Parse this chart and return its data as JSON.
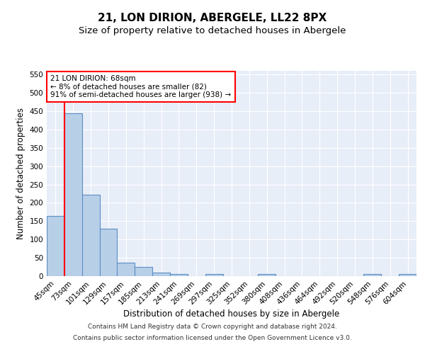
{
  "title": "21, LON DIRION, ABERGELE, LL22 8PX",
  "subtitle": "Size of property relative to detached houses in Abergele",
  "xlabel": "Distribution of detached houses by size in Abergele",
  "ylabel": "Number of detached properties",
  "categories": [
    "45sqm",
    "73sqm",
    "101sqm",
    "129sqm",
    "157sqm",
    "185sqm",
    "213sqm",
    "241sqm",
    "269sqm",
    "297sqm",
    "325sqm",
    "352sqm",
    "380sqm",
    "408sqm",
    "436sqm",
    "464sqm",
    "492sqm",
    "520sqm",
    "548sqm",
    "576sqm",
    "604sqm"
  ],
  "values": [
    165,
    445,
    222,
    130,
    37,
    25,
    10,
    5,
    0,
    5,
    0,
    0,
    5,
    0,
    0,
    0,
    0,
    0,
    5,
    0,
    5
  ],
  "bar_color": "#b8cfe8",
  "bar_edge_color": "#5b8ec4",
  "vertical_line_color": "red",
  "annotation_box_text": "21 LON DIRION: 68sqm\n← 8% of detached houses are smaller (82)\n91% of semi-detached houses are larger (938) →",
  "annotation_box_color": "white",
  "annotation_box_edge_color": "red",
  "ylim": [
    0,
    560
  ],
  "yticks": [
    0,
    50,
    100,
    150,
    200,
    250,
    300,
    350,
    400,
    450,
    500,
    550
  ],
  "footer_line1": "Contains HM Land Registry data © Crown copyright and database right 2024.",
  "footer_line2": "Contains public sector information licensed under the Open Government Licence v3.0.",
  "bg_color": "#e8eef8",
  "grid_color": "white",
  "title_fontsize": 11,
  "subtitle_fontsize": 9.5,
  "tick_fontsize": 7.5,
  "ylabel_fontsize": 8.5,
  "xlabel_fontsize": 8.5,
  "footer_fontsize": 6.5
}
